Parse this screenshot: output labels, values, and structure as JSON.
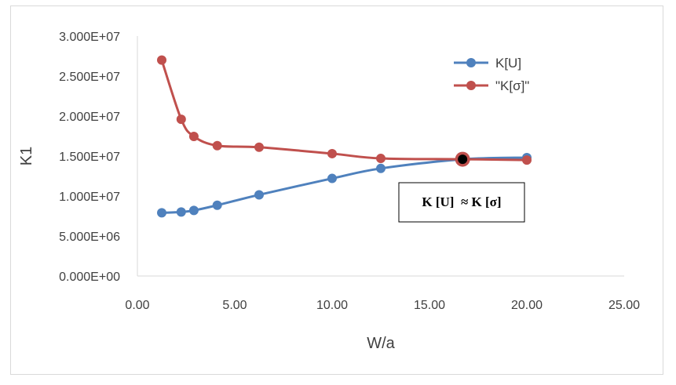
{
  "chart_data": {
    "type": "line",
    "xlabel": "W/a",
    "ylabel": "K1",
    "xlim": [
      0,
      25
    ],
    "ylim": [
      0,
      30000000
    ],
    "x_ticks": [
      "0.00",
      "5.00",
      "10.00",
      "15.00",
      "20.00",
      "25.00"
    ],
    "y_ticks": [
      "0.000E+00",
      "5.000E+06",
      "1.000E+07",
      "1.500E+07",
      "2.000E+07",
      "2.500E+07",
      "3.000E+07"
    ],
    "grid": false,
    "legend_position": "top-right",
    "series": [
      {
        "name": "K[U]",
        "color": "#4f81bd",
        "x": [
          1.25,
          2.25,
          2.9,
          4.1,
          6.25,
          10.0,
          12.5,
          16.7,
          20.0
        ],
        "y": [
          7900000,
          8000000,
          8200000,
          8850000,
          10150000,
          12200000,
          13450000,
          14600000,
          14800000
        ]
      },
      {
        "name": "\"K[σ]\"",
        "color": "#c0504d",
        "x": [
          1.25,
          2.25,
          2.9,
          4.1,
          6.25,
          10.0,
          12.5,
          16.7,
          20.0
        ],
        "y": [
          27000000,
          19600000,
          17450000,
          16300000,
          16100000,
          15300000,
          14700000,
          14600000,
          14500000
        ]
      }
    ],
    "highlight_point": {
      "x": 16.7,
      "y": 14600000
    },
    "annotation": "K [U]  ≈ K [σ]"
  }
}
